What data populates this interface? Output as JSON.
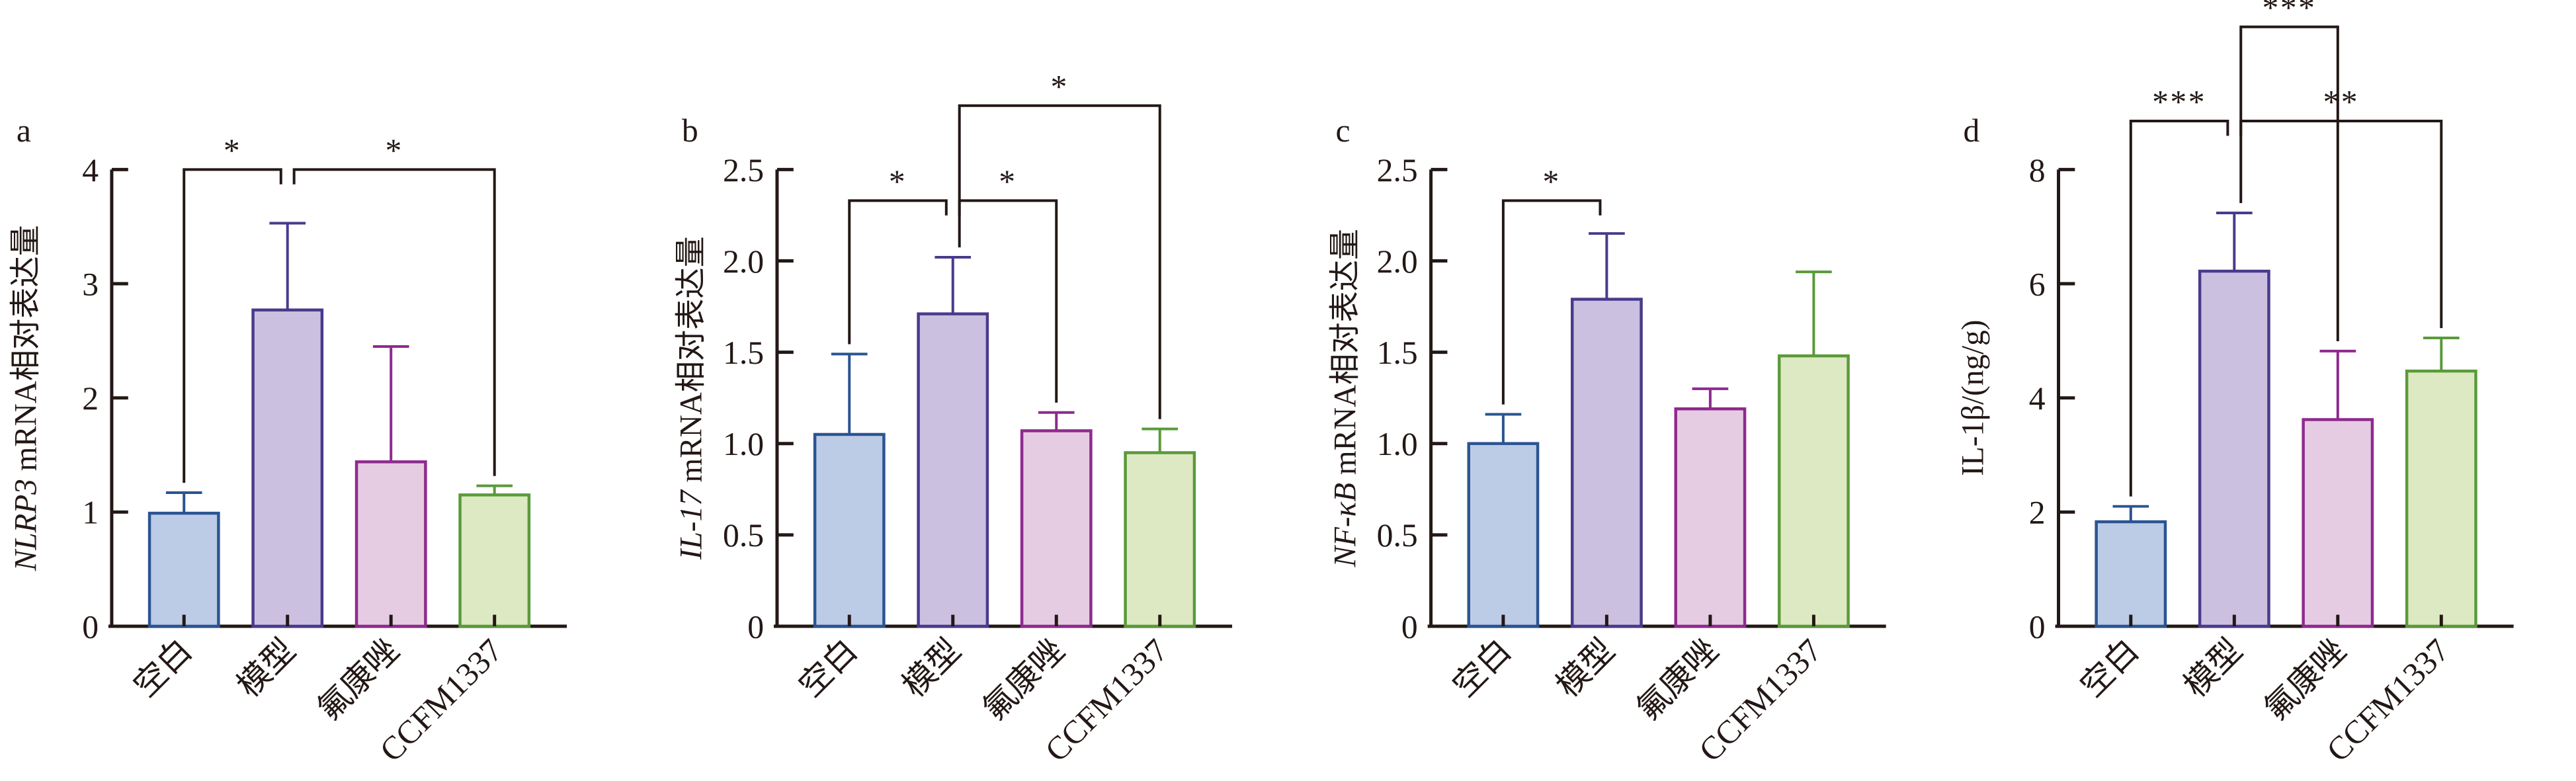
{
  "colors": {
    "strokes": [
      "#2b5491",
      "#4a3a8c",
      "#8e2a8e",
      "#5a9a3a"
    ],
    "fills": [
      "#bccbe6",
      "#cbc0e0",
      "#e5cce2",
      "#dde9c3"
    ],
    "axis": "#231815"
  },
  "chart_data": [
    {
      "type": "bar",
      "panel_label": "a",
      "ylabel_italic": "NLRP3",
      "ylabel_rest": " mRNA相对表达量",
      "categories": [
        "空白",
        "模型",
        "氟康唑",
        "CCFM1337"
      ],
      "values": [
        0.99,
        2.77,
        1.44,
        1.15
      ],
      "errors": [
        0.18,
        0.76,
        1.01,
        0.08
      ],
      "ylim": [
        0,
        4
      ],
      "yticks": [
        "0",
        "1",
        "2",
        "3",
        "4"
      ],
      "ytick_values": [
        0,
        1,
        2,
        3,
        4
      ],
      "significance": [
        {
          "from": 0,
          "to": 1,
          "label": "*",
          "height": 4.0
        },
        {
          "from": 1,
          "to": 3,
          "label": "*",
          "height": 4.0
        }
      ]
    },
    {
      "type": "bar",
      "panel_label": "b",
      "ylabel_italic": "IL-17",
      "ylabel_rest": " mRNA相对表达量",
      "categories": [
        "空白",
        "模型",
        "氟康唑",
        "CCFM1337"
      ],
      "values": [
        1.05,
        1.71,
        1.07,
        0.95
      ],
      "errors": [
        0.44,
        0.31,
        0.1,
        0.13
      ],
      "ylim": [
        0,
        2.5
      ],
      "yticks": [
        "0",
        "0.5",
        "1.0",
        "1.5",
        "2.0",
        "2.5"
      ],
      "ytick_values": [
        0,
        0.5,
        1.0,
        1.5,
        2.0,
        2.5
      ],
      "significance": [
        {
          "from": 0,
          "to": 1,
          "label": "*",
          "height": 2.33
        },
        {
          "from": 1,
          "to": 2,
          "label": "*",
          "height": 2.33
        },
        {
          "from": 1,
          "to": 3,
          "label": "*",
          "height": 2.85
        }
      ]
    },
    {
      "type": "bar",
      "panel_label": "c",
      "ylabel_italic": "NF-κB",
      "ylabel_rest": " mRNA相对表达量",
      "categories": [
        "空白",
        "模型",
        "氟康唑",
        "CCFM1337"
      ],
      "values": [
        1.0,
        1.79,
        1.19,
        1.48
      ],
      "errors": [
        0.16,
        0.36,
        0.11,
        0.46
      ],
      "ylim": [
        0,
        2.5
      ],
      "yticks": [
        "0",
        "0.5",
        "1.0",
        "1.5",
        "2.0",
        "2.5"
      ],
      "ytick_values": [
        0,
        0.5,
        1.0,
        1.5,
        2.0,
        2.5
      ],
      "significance": [
        {
          "from": 0,
          "to": 1,
          "label": "*",
          "height": 2.33
        }
      ]
    },
    {
      "type": "bar",
      "panel_label": "d",
      "ylabel_italic": "",
      "ylabel_rest": "IL-1β/(ng/g)",
      "categories": [
        "空白",
        "模型",
        "氟康唑",
        "CCFM1337"
      ],
      "values": [
        1.83,
        6.22,
        3.62,
        4.47
      ],
      "errors": [
        0.27,
        1.02,
        1.2,
        0.58
      ],
      "ylim": [
        0,
        8
      ],
      "yticks": [
        "0",
        "2",
        "4",
        "6",
        "8"
      ],
      "ytick_values": [
        0,
        2,
        4,
        6,
        8
      ],
      "significance": [
        {
          "from": 0,
          "to": 1,
          "label": "***",
          "height": 8.85
        },
        {
          "from": 1,
          "to": 3,
          "label": "**",
          "height": 8.85
        },
        {
          "from": 1,
          "to": 2,
          "label": "***",
          "height": 10.5
        }
      ]
    }
  ]
}
